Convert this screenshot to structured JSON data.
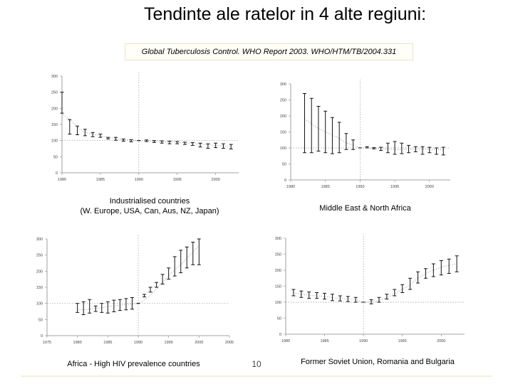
{
  "title": "Tendinte ale ratelor in 4 alte regiuni:",
  "citation": "Global Tuberculosis Control. WHO Report 2003. WHO/HTM/TB/2004.331",
  "slide_number": "10",
  "chart_data": [
    {
      "type": "line",
      "title": "Industrialised countries (W. Europe, USA, Can, Aus, NZ, Japan)",
      "caption_lines": [
        "Industrialised countries",
        "(W. Europe, USA, Can, Aus, NZ, Japan)"
      ],
      "xlim": [
        1980,
        2003
      ],
      "ylim": [
        0,
        300
      ],
      "xticks": [
        1980,
        1985,
        1990,
        1995,
        2000
      ],
      "yticks": [
        0,
        50,
        100,
        150,
        200,
        250,
        300
      ],
      "vline_x": 1990,
      "reference_y": 100,
      "series": [
        {
          "x": [
            1980,
            1981,
            1982,
            1983,
            1984,
            1985,
            1986,
            1987,
            1988,
            1989,
            1990,
            1991,
            1992,
            1993,
            1994,
            1995,
            1996,
            1997,
            1998,
            1999,
            2000,
            2001,
            2002
          ],
          "y": [
            185,
            165,
            142,
            125,
            120,
            115,
            110,
            106,
            103,
            101,
            100,
            99,
            98,
            97,
            96,
            95,
            93,
            91,
            89,
            87,
            85,
            83,
            81
          ],
          "lo": [
            185,
            120,
            118,
            115,
            112,
            110,
            105,
            101,
            98,
            96,
            100,
            97,
            94,
            92,
            90,
            90,
            88,
            85,
            80,
            76,
            78,
            76,
            74
          ],
          "hi": [
            250,
            165,
            145,
            135,
            125,
            120,
            110,
            110,
            105,
            103,
            100,
            102,
            100,
            99,
            98,
            97,
            95,
            94,
            92,
            90,
            92,
            90,
            88
          ]
        }
      ]
    },
    {
      "type": "line",
      "title": "Middle East & North Africa",
      "caption_lines": [
        "Middle East & North Africa"
      ],
      "xlim": [
        1980,
        2003
      ],
      "ylim": [
        0,
        300
      ],
      "xticks": [
        1980,
        1985,
        1990,
        1995,
        2000
      ],
      "yticks": [
        0,
        50,
        100,
        150,
        200,
        250,
        300
      ],
      "vline_x": 1990,
      "reference_y": 100,
      "series": [
        {
          "x": [
            1982,
            1983,
            1984,
            1985,
            1986,
            1987,
            1988,
            1989,
            1990,
            1991,
            1992,
            1993,
            1994,
            1995,
            1996,
            1997,
            1998,
            1999,
            2000,
            2001,
            2002
          ],
          "y": [
            190,
            175,
            160,
            150,
            140,
            130,
            115,
            110,
            100,
            100,
            98,
            97,
            96,
            95,
            95,
            96,
            96,
            96,
            95,
            95,
            95
          ],
          "lo": [
            85,
            85,
            90,
            85,
            82,
            85,
            95,
            95,
            100,
            100,
            97,
            92,
            85,
            80,
            82,
            85,
            88,
            80,
            85,
            80,
            78
          ],
          "hi": [
            270,
            255,
            230,
            215,
            195,
            180,
            145,
            125,
            100,
            104,
            101,
            102,
            115,
            120,
            115,
            108,
            104,
            104,
            102,
            100,
            102
          ]
        }
      ]
    },
    {
      "type": "line",
      "title": "Africa - High HIV prevalence countries",
      "caption_lines": [
        "Africa - High HIV prevalence countries"
      ],
      "xlim": [
        1975,
        2005
      ],
      "ylim": [
        0,
        300
      ],
      "xticks": [
        1975,
        1980,
        1985,
        1990,
        1995,
        2000,
        2005
      ],
      "yticks": [
        0,
        50,
        100,
        150,
        200,
        250,
        300
      ],
      "vline_x": 1990,
      "reference_y": 100,
      "series": [
        {
          "x": [
            1980,
            1981,
            1982,
            1983,
            1984,
            1985,
            1986,
            1987,
            1988,
            1989,
            1990,
            1991,
            1992,
            1993,
            1994,
            1995,
            1996,
            1997,
            1998,
            1999,
            2000
          ],
          "y": [
            80,
            80,
            82,
            85,
            87,
            90,
            92,
            95,
            97,
            98,
            100,
            110,
            125,
            145,
            165,
            185,
            205,
            220,
            240,
            260,
            280
          ],
          "lo": [
            72,
            65,
            70,
            75,
            72,
            70,
            74,
            78,
            80,
            82,
            100,
            120,
            135,
            150,
            160,
            175,
            185,
            195,
            210,
            220,
            220
          ],
          "hi": [
            100,
            105,
            112,
            92,
            100,
            105,
            110,
            112,
            115,
            118,
            100,
            128,
            150,
            165,
            190,
            210,
            245,
            265,
            275,
            290,
            300
          ]
        }
      ]
    },
    {
      "type": "line",
      "title": "Former Soviet Union, Romania and Bulgaria",
      "caption_lines": [
        "Former Soviet Union, Romania and Bulgaria"
      ],
      "xlim": [
        1980,
        2003
      ],
      "ylim": [
        0,
        300
      ],
      "xticks": [
        1980,
        1985,
        1990,
        1995,
        2000
      ],
      "yticks": [
        0,
        50,
        100,
        150,
        200,
        250,
        300
      ],
      "vline_x": 1990,
      "reference_y": 100,
      "series": [
        {
          "x": [
            1981,
            1982,
            1983,
            1984,
            1985,
            1986,
            1987,
            1988,
            1989,
            1990,
            1991,
            1992,
            1993,
            1994,
            1995,
            1996,
            1997,
            1998,
            1999,
            2000,
            2001,
            2002
          ],
          "y": [
            130,
            125,
            122,
            120,
            118,
            115,
            112,
            110,
            108,
            100,
            102,
            105,
            115,
            125,
            140,
            155,
            175,
            190,
            200,
            210,
            215,
            220
          ],
          "lo": [
            120,
            115,
            112,
            112,
            110,
            105,
            104,
            102,
            100,
            100,
            95,
            100,
            110,
            120,
            130,
            140,
            160,
            175,
            180,
            185,
            190,
            195
          ],
          "hi": [
            140,
            135,
            132,
            130,
            128,
            125,
            120,
            118,
            115,
            100,
            108,
            115,
            125,
            140,
            155,
            175,
            195,
            205,
            220,
            230,
            235,
            245
          ]
        }
      ]
    }
  ]
}
